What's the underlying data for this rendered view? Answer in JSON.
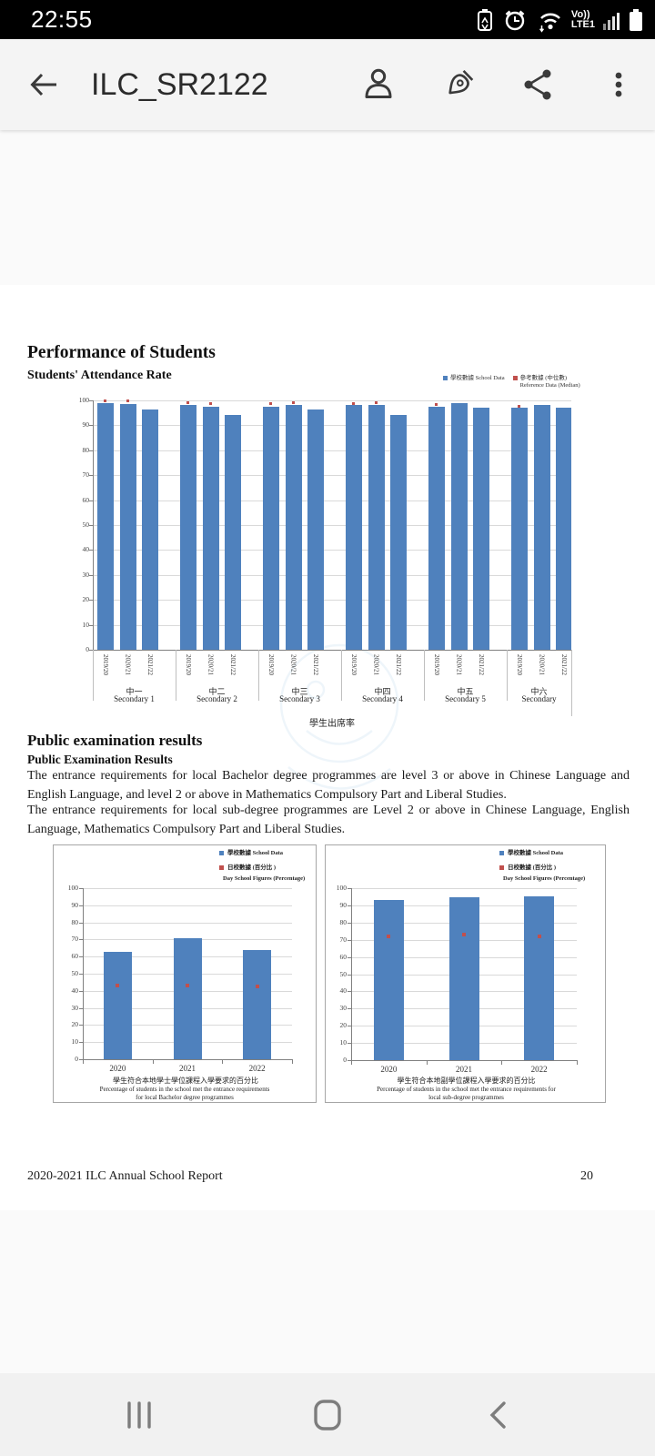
{
  "status_bar": {
    "time": "22:55",
    "volte_top": "Vo))",
    "volte_bottom": "LTE1"
  },
  "toolbar": {
    "title": "ILC_SR2122"
  },
  "document": {
    "section1_title": "Performance of Students",
    "section1_subtitle": "Students' Attendance Rate",
    "section2_title": "Public examination results",
    "section2_subtitle": "Public Examination Results",
    "paragraph1": "The entrance requirements for local Bachelor degree programmes are level 3 or above in Chinese Language and English Language, and level 2 or above in Mathematics Compulsory Part and Liberal Studies.",
    "paragraph2": "The entrance requirements for local sub-degree programmes are Level 2 or above in Chinese Language, English Language, Mathematics Compulsory Part and Liberal Studies.",
    "footer_left": "2020-2021 ILC Annual School Report",
    "page_number": "20"
  },
  "chart_data": [
    {
      "type": "bar",
      "title": "學生出席率",
      "ylim": [
        0,
        100
      ],
      "ytick_step": 10,
      "bar_color": "#4f81bd",
      "ref_color": "#c0504d",
      "legend": [
        {
          "label": "學校數據 School Data",
          "color": "#4f81bd"
        },
        {
          "label": "參考數據 (中位數)",
          "label2": "Reference Data (Median)",
          "color": "#c0504d"
        }
      ],
      "years": [
        "2019/20",
        "2020/21",
        "2021/22"
      ],
      "groups": [
        {
          "label_zh": "中一",
          "label_en": "Secondary 1",
          "school_data": [
            98.9,
            98.5,
            96.2
          ],
          "reference_median": [
            99.2,
            99.2,
            null
          ]
        },
        {
          "label_zh": "中二",
          "label_en": "Secondary 2",
          "school_data": [
            98.3,
            97.5,
            94.0
          ],
          "reference_median": [
            98.7,
            98.0,
            null
          ]
        },
        {
          "label_zh": "中三",
          "label_en": "Secondary 3",
          "school_data": [
            97.6,
            98.3,
            96.2
          ],
          "reference_median": [
            98.0,
            98.7,
            null
          ]
        },
        {
          "label_zh": "中四",
          "label_en": "Secondary 4",
          "school_data": [
            98.0,
            98.1,
            94.0
          ],
          "reference_median": [
            98.3,
            98.5,
            null
          ]
        },
        {
          "label_zh": "中五",
          "label_en": "Secondary 5",
          "school_data": [
            97.5,
            98.9,
            97.1
          ],
          "reference_median": [
            97.9,
            null,
            null
          ]
        },
        {
          "label_zh": "中六",
          "label_en": "Secondary",
          "school_data": [
            97.1,
            98.2,
            97.1
          ],
          "reference_median": [
            97.2,
            null,
            null
          ]
        }
      ]
    },
    {
      "type": "bar",
      "ylim": [
        0,
        100
      ],
      "ytick_step": 10,
      "bar_color": "#4f81bd",
      "ref_color": "#c0504d",
      "legend": [
        {
          "label": "學校數據 School Data",
          "color": "#4f81bd"
        },
        {
          "label": "日校數據 (百分比 )",
          "label2": "Day School Figures (Percentage)",
          "color": "#c0504d"
        }
      ],
      "categories": [
        "2020",
        "2021",
        "2022"
      ],
      "school_data": [
        63,
        71,
        64
      ],
      "day_school_figures": [
        43,
        43,
        42.5
      ],
      "caption_zh": "學生符合本地學士學位課程入學要求的百分比",
      "caption_en": "Percentage of students in the school met the entrance requirements for local Bachelor degree programmes"
    },
    {
      "type": "bar",
      "ylim": [
        0,
        100
      ],
      "ytick_step": 10,
      "bar_color": "#4f81bd",
      "ref_color": "#c0504d",
      "legend": [
        {
          "label": "學校數據 School Data",
          "color": "#4f81bd"
        },
        {
          "label": "日校數據 (百分比 )",
          "label2": "Day School Figures (Percentage)",
          "color": "#c0504d"
        }
      ],
      "categories": [
        "2020",
        "2021",
        "2022"
      ],
      "school_data": [
        93,
        94.5,
        95.5
      ],
      "day_school_figures": [
        72,
        73,
        72
      ],
      "caption_zh": "學生符合本地副學位課程入學要求的百分比",
      "caption_en": "Percentage of students in the school met the entrance requirements for local sub-degree programmes"
    }
  ]
}
